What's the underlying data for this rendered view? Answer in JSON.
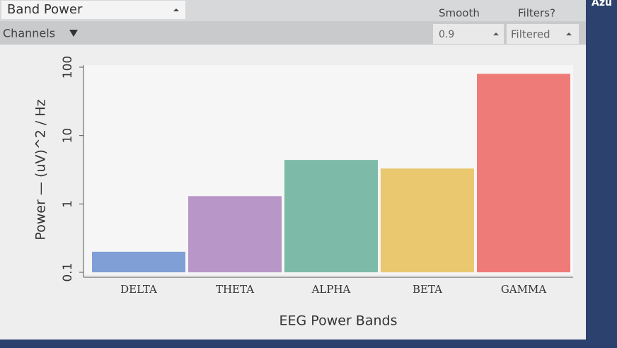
{
  "widget": {
    "title": "Band Power",
    "smooth_label": "Smooth",
    "filters_label": "Filters?",
    "channels": "Channels",
    "smooth_value": "0.9",
    "filters_value": "Filtered",
    "corner_text": "Azu"
  },
  "chart_data": {
    "type": "bar",
    "x_label": "EEG Power Bands",
    "y_label": "Power — (uV)^2 / Hz",
    "categories": [
      "DELTA",
      "THETA",
      "ALPHA",
      "BETA",
      "GAMMA"
    ],
    "values": [
      0.2,
      1.3,
      4.4,
      3.3,
      80
    ],
    "colors": [
      "#7f9fd6",
      "#b996c8",
      "#7dbba8",
      "#e9c870",
      "#ef7b78"
    ],
    "ylim": [
      0.1,
      100
    ],
    "yticks": [
      0.1,
      1,
      10,
      100
    ],
    "log_y": true
  }
}
